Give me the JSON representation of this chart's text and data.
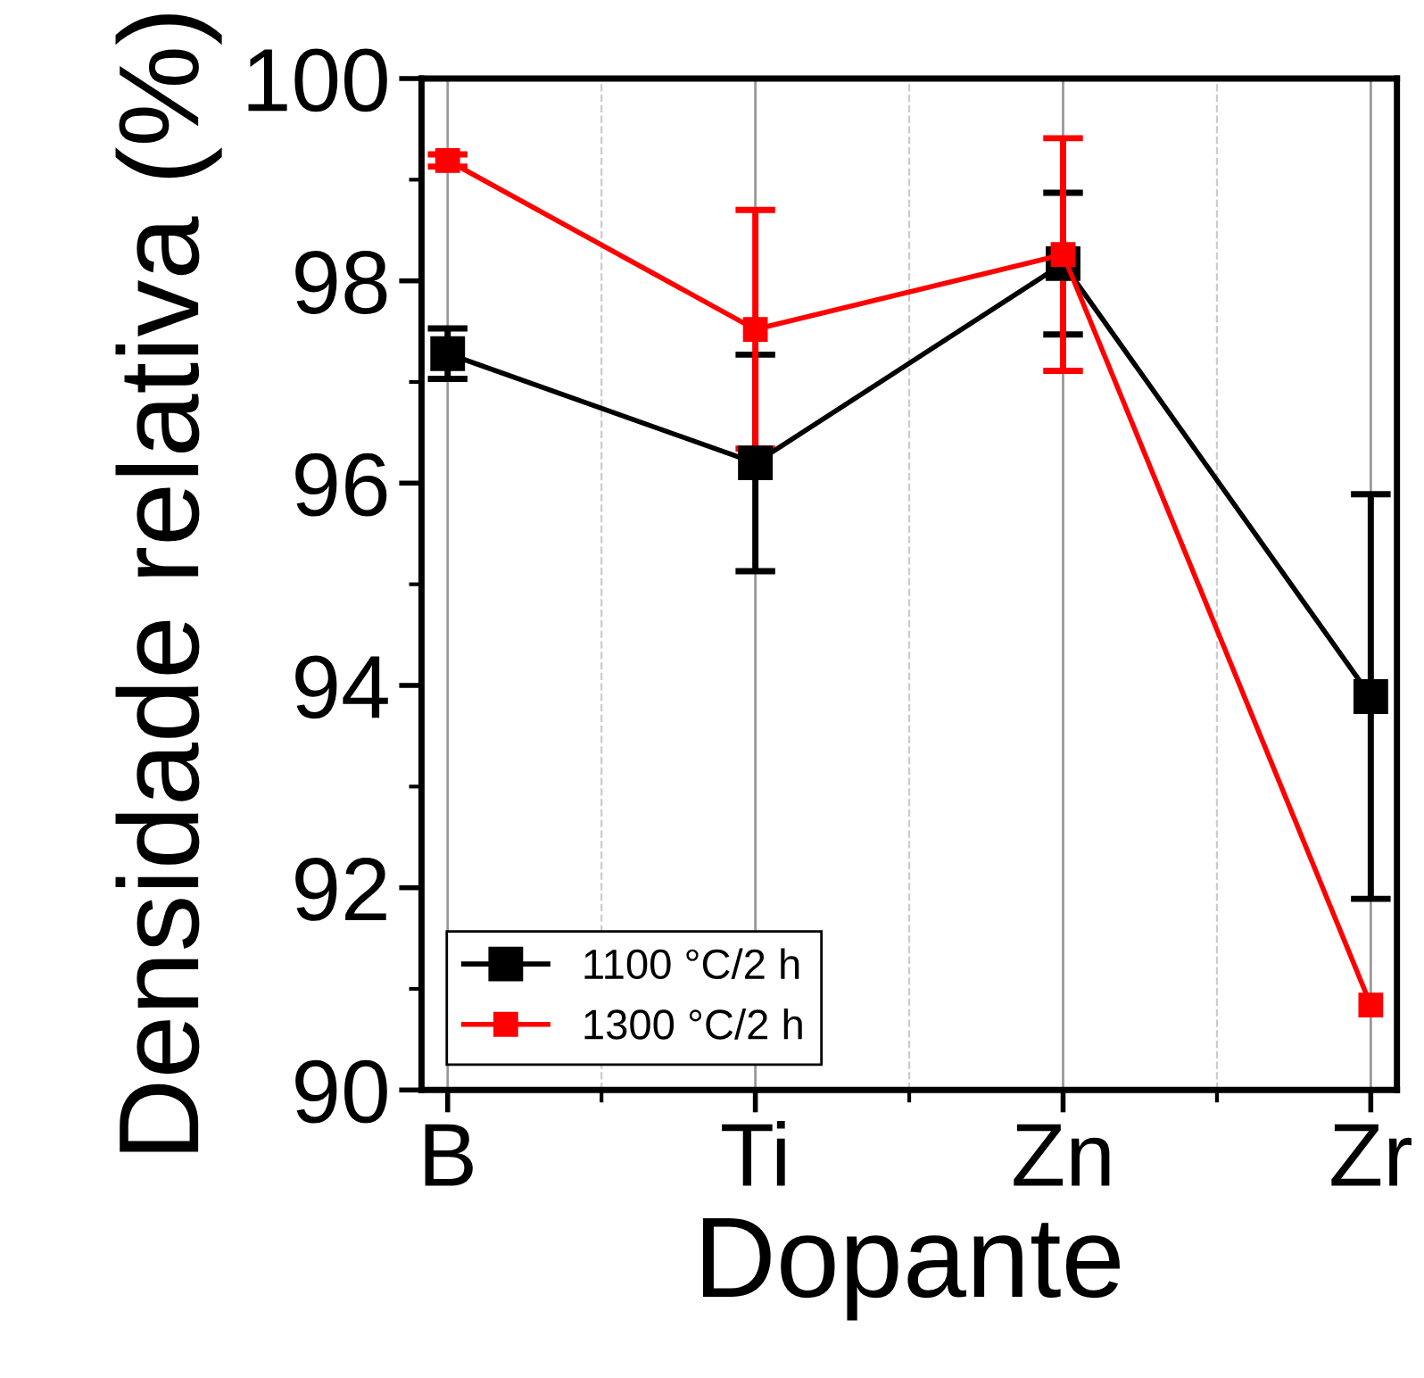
{
  "chart_data": {
    "type": "line",
    "xlabel": "Dopante",
    "ylabel": "Densidade relativa (%)",
    "categories": [
      "B",
      "Ti",
      "Zn",
      "Zr"
    ],
    "series": [
      {
        "name": "1100 °C/2 h",
        "color": "#000000",
        "values": [
          97.28,
          96.2,
          98.17,
          93.89
        ],
        "errors": [
          0.25,
          1.07,
          0.7,
          2.0
        ]
      },
      {
        "name": "1300 °C/2 h",
        "color": "#ff0000",
        "values": [
          99.19,
          97.52,
          98.26,
          90.84
        ],
        "errors": [
          0.06,
          1.18,
          1.15,
          null
        ]
      }
    ],
    "ylim": [
      90,
      100
    ],
    "yticks": [
      90,
      92,
      94,
      96,
      98,
      100
    ],
    "grid": "x",
    "legend": "bottom left",
    "marker": "square",
    "line_style": "solid"
  }
}
